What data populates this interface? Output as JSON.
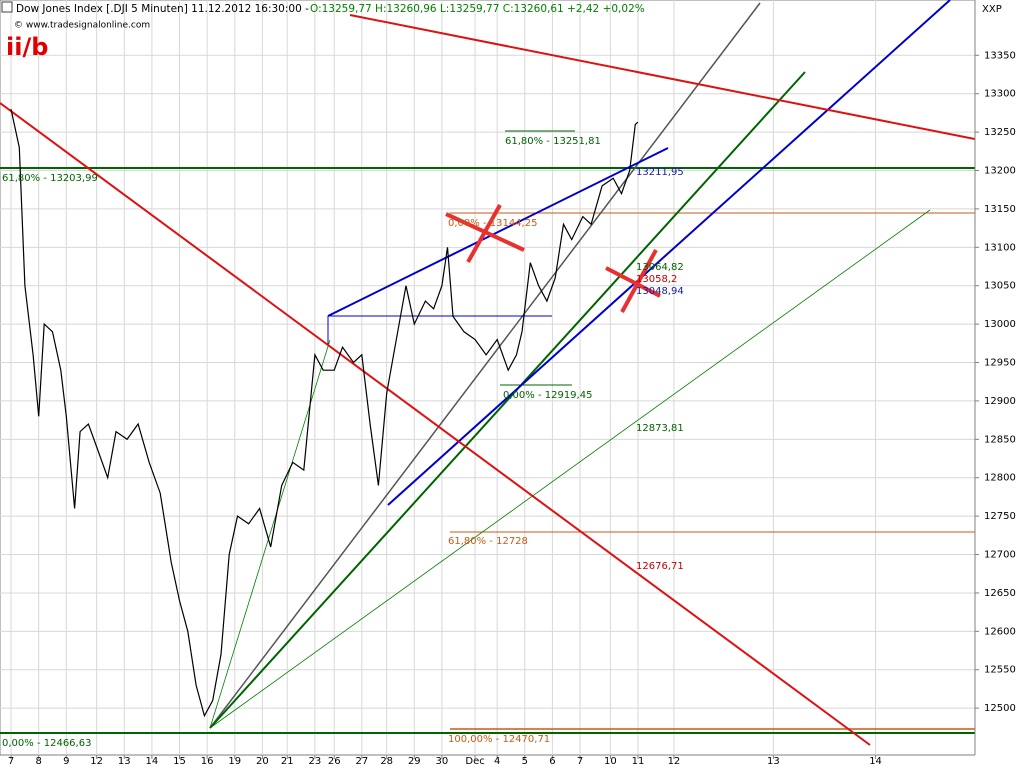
{
  "chart_data": {
    "type": "line",
    "header": {
      "title": "Dow Jones Index [.DJI  5 Minuten] 11.12.2012 16:30:00 -",
      "quote": "O:13259,77 H:13260,96 L:13259,77 C:13260,61 +2,42 +0,02%"
    },
    "copyright": "© www.tradesignalonline.com",
    "label": "ii/b",
    "corner": "XXP",
    "grid": true,
    "xlim": [
      -0.4,
      34.9
    ],
    "xticks": [
      {
        "value": 0,
        "label": "7"
      },
      {
        "value": 1,
        "label": "8"
      },
      {
        "value": 2,
        "label": "9"
      },
      {
        "value": 3.1,
        "label": "12"
      },
      {
        "value": 4.1,
        "label": "13"
      },
      {
        "value": 5.1,
        "label": "14"
      },
      {
        "value": 6.1,
        "label": "15"
      },
      {
        "value": 7.1,
        "label": "16"
      },
      {
        "value": 8.1,
        "label": "19"
      },
      {
        "value": 9.1,
        "label": "20"
      },
      {
        "value": 10,
        "label": "21"
      },
      {
        "value": 11,
        "label": "23"
      },
      {
        "value": 11.7,
        "label": "26"
      },
      {
        "value": 12.7,
        "label": "27"
      },
      {
        "value": 13.6,
        "label": "28"
      },
      {
        "value": 14.6,
        "label": "29"
      },
      {
        "value": 15.6,
        "label": "30"
      },
      {
        "value": 16.8,
        "label": "Dec"
      },
      {
        "value": 17.6,
        "label": "4"
      },
      {
        "value": 18.6,
        "label": "5"
      },
      {
        "value": 19.6,
        "label": "6"
      },
      {
        "value": 20.6,
        "label": "7"
      },
      {
        "value": 21.7,
        "label": "10"
      },
      {
        "value": 22.7,
        "label": "11"
      },
      {
        "value": 24,
        "label": "12"
      },
      {
        "value": 27.6,
        "label": "13"
      },
      {
        "value": 31.3,
        "label": "14"
      }
    ],
    "ylim": [
      12439,
      13422
    ],
    "yticks": [
      12500,
      12550,
      12600,
      12650,
      12700,
      12750,
      12800,
      12850,
      12900,
      12950,
      13000,
      13050,
      13100,
      13150,
      13200,
      13250,
      13300,
      13350
    ],
    "series": [
      {
        "name": "Dow Jones Index",
        "color": "#000000",
        "x": [
          0,
          0.3,
          0.5,
          0.8,
          1.0,
          1.2,
          1.5,
          1.8,
          2.0,
          2.3,
          2.5,
          2.8,
          3.1,
          3.5,
          3.8,
          4.2,
          4.6,
          5.0,
          5.4,
          5.8,
          6.1,
          6.4,
          6.7,
          7.0,
          7.3,
          7.6,
          7.9,
          8.2,
          8.6,
          9.0,
          9.4,
          9.8,
          10.2,
          10.6,
          11.0,
          11.3,
          11.7,
          12.0,
          12.4,
          12.7,
          13.0,
          13.3,
          13.6,
          14.0,
          14.3,
          14.6,
          15.0,
          15.3,
          15.6,
          15.8,
          16.0,
          16.4,
          16.8,
          17.2,
          17.6,
          18.0,
          18.3,
          18.5,
          18.8,
          19.1,
          19.4,
          19.7,
          20.0,
          20.3,
          20.7,
          21.0,
          21.4,
          21.8,
          22.1,
          22.4,
          22.6,
          22.7
        ],
        "values": [
          13280,
          13230,
          13050,
          12960,
          12880,
          13000,
          12990,
          12940,
          12880,
          12760,
          12860,
          12870,
          12840,
          12800,
          12860,
          12850,
          12870,
          12820,
          12780,
          12690,
          12640,
          12600,
          12530,
          12490,
          12510,
          12570,
          12700,
          12750,
          12740,
          12760,
          12710,
          12790,
          12820,
          12810,
          12960,
          12940,
          12940,
          12970,
          12950,
          12960,
          12870,
          12790,
          12910,
          12990,
          13050,
          13000,
          13030,
          13020,
          13050,
          13100,
          13010,
          12990,
          12980,
          12960,
          12980,
          12940,
          12960,
          12990,
          13080,
          13050,
          13030,
          13060,
          13130,
          13110,
          13140,
          13130,
          13180,
          13190,
          13170,
          13200,
          13260,
          13263
        ]
      }
    ],
    "annotations": [
      {
        "text": "61,80% - 13251,81",
        "color": "#006400"
      },
      {
        "text": "61,80% - 13203,99",
        "color": "#006400"
      },
      {
        "text": "0,00% - 13144,25",
        "color": "#c85a14"
      },
      {
        "text": "13211,95",
        "color": "#1a1aa0"
      },
      {
        "text": "13064,82",
        "color": "#006400"
      },
      {
        "text": "13058,2",
        "color": "#c00000"
      },
      {
        "text": "13048,94",
        "color": "#1a1aa0"
      },
      {
        "text": "0,00% - 12919,45",
        "color": "#006400"
      },
      {
        "text": "12873,81",
        "color": "#006400"
      },
      {
        "text": "61,80% - 12728",
        "color": "#c85a14"
      },
      {
        "text": "12676,71",
        "color": "#c00000"
      },
      {
        "text": "100,00% - 12470,71",
        "color": "#c85a14"
      },
      {
        "text": "0,00% - 12466,63",
        "color": "#006400"
      }
    ]
  }
}
